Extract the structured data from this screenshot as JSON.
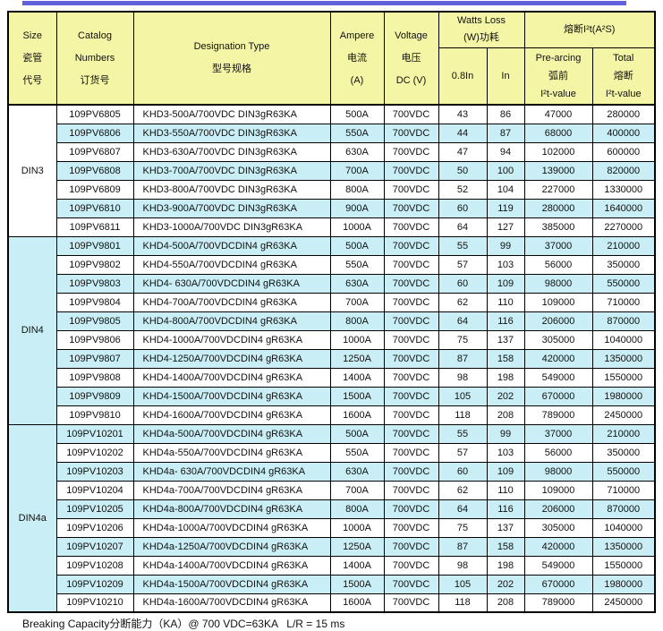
{
  "colors": {
    "accent_bar": "#6161DC",
    "header_bg": "#F5F5A6",
    "stripe_bg": "#C9EEF5",
    "border": "#000000"
  },
  "header": {
    "size": "Size\n瓷管\n代号",
    "catalog": "Catalog\nNumbers\n订货号",
    "designation": "Designation Type\n型号规格",
    "ampere": "Ampere\n电流\n(A)",
    "voltage": "Voltage\n电压\nDC (V)",
    "watts_group": "Watts Loss\n(W)功耗",
    "watts_sub_08": "0.8In",
    "watts_sub_in": "In",
    "i2t_group": "熔断I²t(A²S)",
    "i2t_prearcing": "Pre-arcing\n弧前\nI²t-value",
    "i2t_total": "Total\n熔断\nI²t-value"
  },
  "groups": [
    {
      "size": "DIN3",
      "rows": [
        [
          "109PV6805",
          "KHD3-500A/700VDC DIN3gR63KA",
          "500A",
          "700VDC",
          "43",
          "86",
          "47000",
          "280000"
        ],
        [
          "109PV6806",
          "KHD3-550A/700VDC DIN3gR63KA",
          "550A",
          "700VDC",
          "44",
          "87",
          "68000",
          "400000"
        ],
        [
          "109PV6807",
          "KHD3-630A/700VDC DIN3gR63KA",
          "630A",
          "700VDC",
          "47",
          "94",
          "102000",
          "600000"
        ],
        [
          "109PV6808",
          "KHD3-700A/700VDC DIN3gR63KA",
          "700A",
          "700VDC",
          "50",
          "100",
          "139000",
          "820000"
        ],
        [
          "109PV6809",
          "KHD3-800A/700VDC DIN3gR63KA",
          "800A",
          "700VDC",
          "52",
          "104",
          "227000",
          "1330000"
        ],
        [
          "109PV6810",
          "KHD3-900A/700VDC DIN3gR63KA",
          "900A",
          "700VDC",
          "60",
          "119",
          "280000",
          "1640000"
        ],
        [
          "109PV6811",
          "KHD3-1000A/700VDC DIN3gR63KA",
          "1000A",
          "700VDC",
          "64",
          "127",
          "385000",
          "2270000"
        ]
      ]
    },
    {
      "size": "DIN4",
      "rows": [
        [
          "109PV9801",
          "KHD4-500A/700VDCDIN4 gR63KA",
          "500A",
          "700VDC",
          "55",
          "99",
          "37000",
          "210000"
        ],
        [
          "109PV9802",
          "KHD4-550A/700VDCDIN4 gR63KA",
          "550A",
          "700VDC",
          "57",
          "103",
          "56000",
          "350000"
        ],
        [
          "109PV9803",
          "KHD4- 630A/700VDCDIN4 gR63KA",
          "630A",
          "700VDC",
          "60",
          "109",
          "98000",
          "550000"
        ],
        [
          "109PV9804",
          "KHD4-700A/700VDCDIN4 gR63KA",
          "700A",
          "700VDC",
          "62",
          "110",
          "109000",
          "710000"
        ],
        [
          "109PV9805",
          "KHD4-800A/700VDCDIN4 gR63KA",
          "800A",
          "700VDC",
          "64",
          "116",
          "206000",
          "870000"
        ],
        [
          "109PV9806",
          "KHD4-1000A/700VDCDIN4 gR63KA",
          "1000A",
          "700VDC",
          "75",
          "137",
          "305000",
          "1040000"
        ],
        [
          "109PV9807",
          "KHD4-1250A/700VDCDIN4 gR63KA",
          "1250A",
          "700VDC",
          "87",
          "158",
          "420000",
          "1350000"
        ],
        [
          "109PV9808",
          "KHD4-1400A/700VDCDIN4 gR63KA",
          "1400A",
          "700VDC",
          "98",
          "198",
          "549000",
          "1550000"
        ],
        [
          "109PV9809",
          "KHD4-1500A/700VDCDIN4 gR63KA",
          "1500A",
          "700VDC",
          "105",
          "202",
          "670000",
          "1980000"
        ],
        [
          "109PV9810",
          "KHD4-1600A/700VDCDIN4 gR63KA",
          "1600A",
          "700VDC",
          "118",
          "208",
          "789000",
          "2450000"
        ]
      ]
    },
    {
      "size": "DIN4a",
      "rows": [
        [
          "109PV10201",
          "KHD4a-500A/700VDCDIN4 gR63KA",
          "500A",
          "700VDC",
          "55",
          "99",
          "37000",
          "210000"
        ],
        [
          "109PV10202",
          "KHD4a-550A/700VDCDIN4 gR63KA",
          "550A",
          "700VDC",
          "57",
          "103",
          "56000",
          "350000"
        ],
        [
          "109PV10203",
          "KHD4a- 630A/700VDCDIN4 gR63KA",
          "630A",
          "700VDC",
          "60",
          "109",
          "98000",
          "550000"
        ],
        [
          "109PV10204",
          "KHD4a-700A/700VDCDIN4 gR63KA",
          "700A",
          "700VDC",
          "62",
          "110",
          "109000",
          "710000"
        ],
        [
          "109PV10205",
          "KHD4a-800A/700VDCDIN4 gR63KA",
          "800A",
          "700VDC",
          "64",
          "116",
          "206000",
          "870000"
        ],
        [
          "109PV10206",
          "KHD4a-1000A/700VDCDIN4 gR63KA",
          "1000A",
          "700VDC",
          "75",
          "137",
          "305000",
          "1040000"
        ],
        [
          "109PV10207",
          "KHD4a-1250A/700VDCDIN4 gR63KA",
          "1250A",
          "700VDC",
          "87",
          "158",
          "420000",
          "1350000"
        ],
        [
          "109PV10208",
          "KHD4a-1400A/700VDCDIN4 gR63KA",
          "1400A",
          "700VDC",
          "98",
          "198",
          "549000",
          "1550000"
        ],
        [
          "109PV10209",
          "KHD4a-1500A/700VDCDIN4 gR63KA",
          "1500A",
          "700VDC",
          "105",
          "202",
          "670000",
          "1980000"
        ],
        [
          "109PV10210",
          "KHD4a-1600A/700VDCDIN4 gR63KA",
          "1600A",
          "700VDC",
          "118",
          "208",
          "789000",
          "2450000"
        ]
      ]
    }
  ],
  "footer": {
    "note": "Breaking Capacity分断能力（KA）@ 700 VDC=63KA   L/R = 15 ms"
  }
}
